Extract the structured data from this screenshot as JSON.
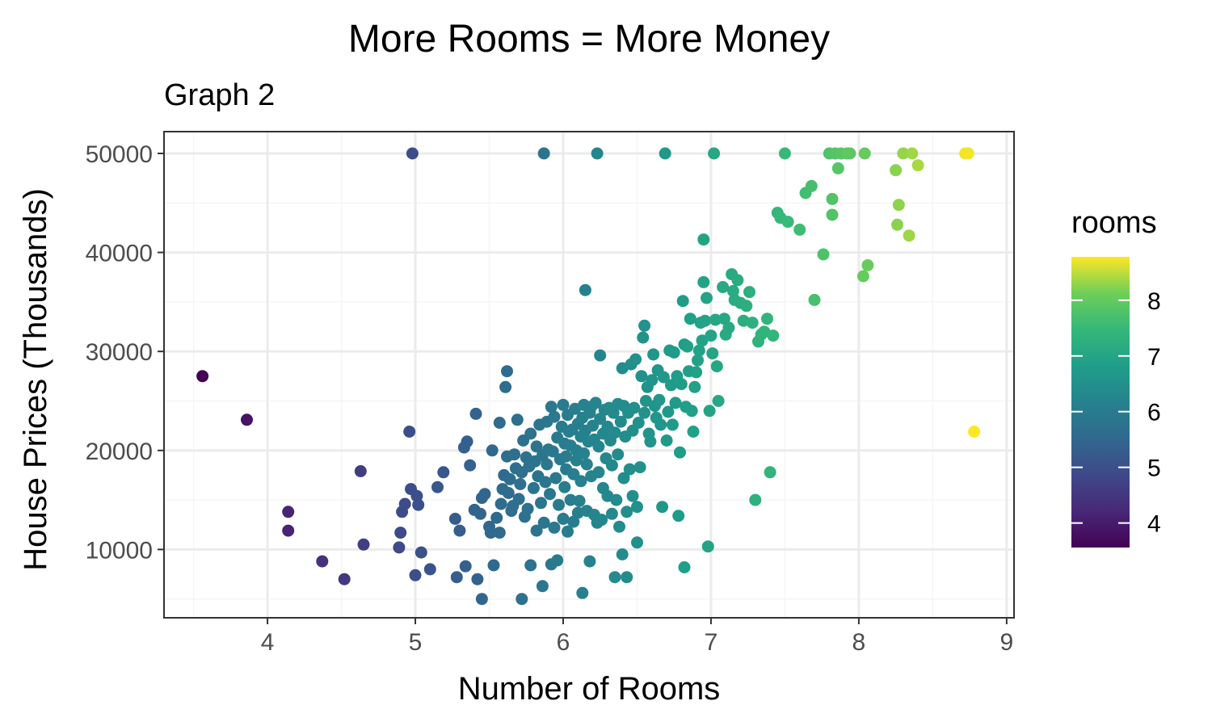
{
  "chart_data": {
    "type": "scatter",
    "title": "More Rooms = More Money",
    "subtitle": "Graph 2",
    "xlabel": "Number of Rooms",
    "ylabel": "House Prices (Thousands)",
    "xlim": [
      3.3,
      9.05
    ],
    "ylim": [
      3100,
      52200
    ],
    "x_ticks": [
      4,
      5,
      6,
      7,
      8,
      9
    ],
    "y_ticks": [
      10000,
      20000,
      30000,
      40000,
      50000
    ],
    "grid": true,
    "legend": {
      "title": "rooms",
      "placement": "right",
      "type": "colorbar",
      "range": [
        3.56,
        8.78
      ],
      "ticks": [
        4,
        5,
        6,
        7,
        8
      ]
    },
    "colors": {
      "panel_border": "#333333",
      "grid_major": "#ebebeb",
      "grid_minor": "#f5f5f5",
      "viridis_low": "#440154",
      "viridis_high": "#fde725"
    },
    "points": [
      [
        3.56,
        27500
      ],
      [
        3.86,
        23100
      ],
      [
        4.14,
        13800
      ],
      [
        4.14,
        11900
      ],
      [
        4.37,
        8800
      ],
      [
        4.52,
        7000
      ],
      [
        4.63,
        17900
      ],
      [
        4.65,
        10500
      ],
      [
        4.89,
        10200
      ],
      [
        4.9,
        11700
      ],
      [
        4.91,
        13800
      ],
      [
        4.93,
        14600
      ],
      [
        4.96,
        21900
      ],
      [
        4.97,
        16100
      ],
      [
        4.98,
        50000
      ],
      [
        5.0,
        7400
      ],
      [
        5.01,
        15400
      ],
      [
        5.02,
        14500
      ],
      [
        5.04,
        9700
      ],
      [
        5.1,
        8000
      ],
      [
        5.15,
        16300
      ],
      [
        5.19,
        17800
      ],
      [
        5.27,
        13100
      ],
      [
        5.28,
        7200
      ],
      [
        5.3,
        11900
      ],
      [
        5.33,
        20300
      ],
      [
        5.34,
        8300
      ],
      [
        5.35,
        20900
      ],
      [
        5.37,
        18500
      ],
      [
        5.4,
        14000
      ],
      [
        5.41,
        23700
      ],
      [
        5.42,
        7000
      ],
      [
        5.44,
        13600
      ],
      [
        5.45,
        5000
      ],
      [
        5.45,
        15200
      ],
      [
        5.47,
        15600
      ],
      [
        5.5,
        12300
      ],
      [
        5.51,
        11700
      ],
      [
        5.52,
        20000
      ],
      [
        5.53,
        8400
      ],
      [
        5.55,
        13200
      ],
      [
        5.57,
        11700
      ],
      [
        5.57,
        22800
      ],
      [
        5.58,
        14600
      ],
      [
        5.59,
        16100
      ],
      [
        5.6,
        17500
      ],
      [
        5.61,
        26400
      ],
      [
        5.62,
        28000
      ],
      [
        5.62,
        19400
      ],
      [
        5.63,
        15700
      ],
      [
        5.64,
        17100
      ],
      [
        5.65,
        13900
      ],
      [
        5.66,
        14400
      ],
      [
        5.67,
        19600
      ],
      [
        5.68,
        18200
      ],
      [
        5.69,
        23100
      ],
      [
        5.7,
        15100
      ],
      [
        5.71,
        16600
      ],
      [
        5.72,
        17800
      ],
      [
        5.72,
        5000
      ],
      [
        5.73,
        21000
      ],
      [
        5.74,
        13300
      ],
      [
        5.75,
        19300
      ],
      [
        5.76,
        14100
      ],
      [
        5.77,
        18400
      ],
      [
        5.78,
        21700
      ],
      [
        5.78,
        8400
      ],
      [
        5.8,
        16200
      ],
      [
        5.81,
        18900
      ],
      [
        5.82,
        11900
      ],
      [
        5.82,
        20400
      ],
      [
        5.83,
        17400
      ],
      [
        5.84,
        22600
      ],
      [
        5.85,
        14700
      ],
      [
        5.86,
        19500
      ],
      [
        5.86,
        6300
      ],
      [
        5.87,
        12700
      ],
      [
        5.87,
        50000
      ],
      [
        5.88,
        16800
      ],
      [
        5.89,
        18600
      ],
      [
        5.89,
        22900
      ],
      [
        5.9,
        20100
      ],
      [
        5.91,
        15600
      ],
      [
        5.92,
        8500
      ],
      [
        5.92,
        24400
      ],
      [
        5.93,
        19900
      ],
      [
        5.94,
        12200
      ],
      [
        5.94,
        23400
      ],
      [
        5.95,
        17200
      ],
      [
        5.96,
        21300
      ],
      [
        5.96,
        8900
      ],
      [
        5.97,
        14500
      ],
      [
        5.98,
        19100
      ],
      [
        5.99,
        22400
      ],
      [
        6.0,
        24600
      ],
      [
        6.0,
        13100
      ],
      [
        6.01,
        20700
      ],
      [
        6.01,
        16300
      ],
      [
        6.02,
        19400
      ],
      [
        6.02,
        18100
      ],
      [
        6.03,
        23600
      ],
      [
        6.03,
        11800
      ],
      [
        6.04,
        21900
      ],
      [
        6.05,
        15000
      ],
      [
        6.05,
        20500
      ],
      [
        6.06,
        22100
      ],
      [
        6.07,
        17600
      ],
      [
        6.07,
        12800
      ],
      [
        6.08,
        24200
      ],
      [
        6.09,
        20000
      ],
      [
        6.09,
        19000
      ],
      [
        6.1,
        13700
      ],
      [
        6.1,
        22700
      ],
      [
        6.11,
        14900
      ],
      [
        6.12,
        21400
      ],
      [
        6.12,
        16900
      ],
      [
        6.13,
        23300
      ],
      [
        6.13,
        5600
      ],
      [
        6.14,
        19700
      ],
      [
        6.14,
        24600
      ],
      [
        6.15,
        36200
      ],
      [
        6.15,
        22000
      ],
      [
        6.16,
        18600
      ],
      [
        6.16,
        13900
      ],
      [
        6.17,
        20900
      ],
      [
        6.18,
        23800
      ],
      [
        6.18,
        8800
      ],
      [
        6.19,
        24400
      ],
      [
        6.19,
        17400
      ],
      [
        6.2,
        22500
      ],
      [
        6.21,
        13500
      ],
      [
        6.21,
        21100
      ],
      [
        6.22,
        24800
      ],
      [
        6.23,
        50000
      ],
      [
        6.23,
        12700
      ],
      [
        6.24,
        20400
      ],
      [
        6.24,
        17800
      ],
      [
        6.25,
        23200
      ],
      [
        6.25,
        29600
      ],
      [
        6.26,
        13000
      ],
      [
        6.27,
        21700
      ],
      [
        6.27,
        16200
      ],
      [
        6.28,
        24100
      ],
      [
        6.29,
        19200
      ],
      [
        6.3,
        22400
      ],
      [
        6.3,
        15400
      ],
      [
        6.31,
        24300
      ],
      [
        6.32,
        21000
      ],
      [
        6.33,
        13600
      ],
      [
        6.33,
        18500
      ],
      [
        6.34,
        23800
      ],
      [
        6.35,
        7200
      ],
      [
        6.35,
        21800
      ],
      [
        6.36,
        15000
      ],
      [
        6.37,
        24700
      ],
      [
        6.37,
        19600
      ],
      [
        6.38,
        12300
      ],
      [
        6.39,
        22900
      ],
      [
        6.4,
        28300
      ],
      [
        6.4,
        9500
      ],
      [
        6.41,
        17200
      ],
      [
        6.41,
        24500
      ],
      [
        6.42,
        21400
      ],
      [
        6.43,
        13800
      ],
      [
        6.43,
        7200
      ],
      [
        6.44,
        23800
      ],
      [
        6.45,
        18100
      ],
      [
        6.46,
        28700
      ],
      [
        6.47,
        22000
      ],
      [
        6.47,
        15400
      ],
      [
        6.48,
        24300
      ],
      [
        6.49,
        29200
      ],
      [
        6.5,
        14300
      ],
      [
        6.5,
        10700
      ],
      [
        6.51,
        22800
      ],
      [
        6.52,
        18300
      ],
      [
        6.53,
        27500
      ],
      [
        6.54,
        31400
      ],
      [
        6.55,
        32600
      ],
      [
        6.55,
        23800
      ],
      [
        6.56,
        25000
      ],
      [
        6.57,
        26400
      ],
      [
        6.58,
        21700
      ],
      [
        6.59,
        20900
      ],
      [
        6.6,
        27100
      ],
      [
        6.61,
        29700
      ],
      [
        6.62,
        24500
      ],
      [
        6.63,
        23300
      ],
      [
        6.64,
        28100
      ],
      [
        6.65,
        25100
      ],
      [
        6.66,
        22600
      ],
      [
        6.67,
        14300
      ],
      [
        6.68,
        27400
      ],
      [
        6.69,
        50000
      ],
      [
        6.7,
        21000
      ],
      [
        6.71,
        23900
      ],
      [
        6.72,
        30100
      ],
      [
        6.73,
        26600
      ],
      [
        6.74,
        22600
      ],
      [
        6.75,
        29900
      ],
      [
        6.76,
        24800
      ],
      [
        6.77,
        27500
      ],
      [
        6.78,
        13400
      ],
      [
        6.79,
        19800
      ],
      [
        6.8,
        26700
      ],
      [
        6.81,
        35100
      ],
      [
        6.82,
        30700
      ],
      [
        6.82,
        8200
      ],
      [
        6.83,
        24400
      ],
      [
        6.84,
        30500
      ],
      [
        6.85,
        28000
      ],
      [
        6.86,
        33300
      ],
      [
        6.87,
        24000
      ],
      [
        6.88,
        21900
      ],
      [
        6.89,
        26400
      ],
      [
        6.9,
        27900
      ],
      [
        6.91,
        29100
      ],
      [
        6.92,
        30100
      ],
      [
        6.93,
        32900
      ],
      [
        6.94,
        31100
      ],
      [
        6.95,
        41300
      ],
      [
        6.95,
        37000
      ],
      [
        6.96,
        33100
      ],
      [
        6.97,
        35400
      ],
      [
        6.98,
        10300
      ],
      [
        6.99,
        24000
      ],
      [
        7.0,
        31600
      ],
      [
        7.01,
        29800
      ],
      [
        7.02,
        50000
      ],
      [
        7.03,
        33200
      ],
      [
        7.04,
        28500
      ],
      [
        7.05,
        25000
      ],
      [
        7.08,
        36500
      ],
      [
        7.09,
        33300
      ],
      [
        7.1,
        31700
      ],
      [
        7.12,
        32400
      ],
      [
        7.14,
        37800
      ],
      [
        7.15,
        36100
      ],
      [
        7.16,
        35200
      ],
      [
        7.18,
        37200
      ],
      [
        7.2,
        34900
      ],
      [
        7.22,
        33100
      ],
      [
        7.24,
        34600
      ],
      [
        7.26,
        36000
      ],
      [
        7.28,
        32900
      ],
      [
        7.3,
        15000
      ],
      [
        7.32,
        31000
      ],
      [
        7.34,
        31700
      ],
      [
        7.36,
        32000
      ],
      [
        7.38,
        33300
      ],
      [
        7.4,
        17800
      ],
      [
        7.42,
        31600
      ],
      [
        7.45,
        44000
      ],
      [
        7.47,
        43500
      ],
      [
        7.5,
        50000
      ],
      [
        7.52,
        43100
      ],
      [
        7.6,
        42300
      ],
      [
        7.64,
        46000
      ],
      [
        7.68,
        46700
      ],
      [
        7.7,
        35200
      ],
      [
        7.76,
        39800
      ],
      [
        7.8,
        50000
      ],
      [
        7.82,
        45400
      ],
      [
        7.82,
        43800
      ],
      [
        7.84,
        50000
      ],
      [
        7.86,
        48500
      ],
      [
        7.88,
        50000
      ],
      [
        7.92,
        50000
      ],
      [
        7.94,
        50000
      ],
      [
        8.03,
        37600
      ],
      [
        8.04,
        50000
      ],
      [
        8.06,
        38700
      ],
      [
        8.25,
        48300
      ],
      [
        8.26,
        42800
      ],
      [
        8.27,
        44800
      ],
      [
        8.3,
        50000
      ],
      [
        8.34,
        41700
      ],
      [
        8.36,
        50000
      ],
      [
        8.4,
        48800
      ],
      [
        8.72,
        50000
      ],
      [
        8.74,
        50000
      ],
      [
        8.78,
        21900
      ]
    ]
  }
}
